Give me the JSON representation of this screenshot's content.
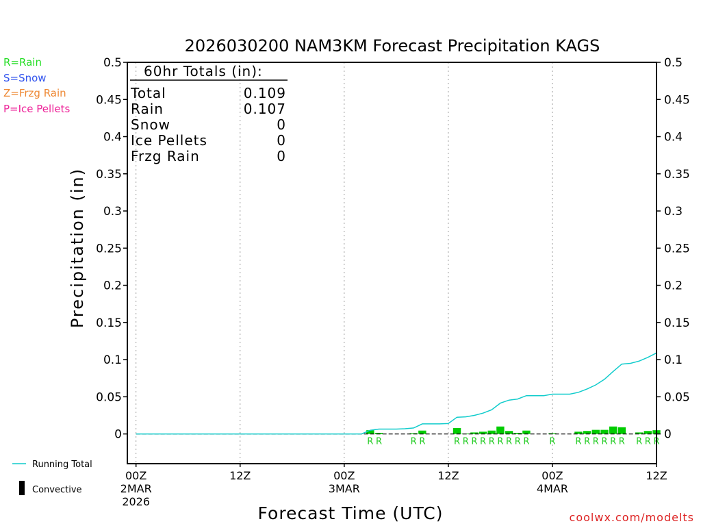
{
  "chart_data": {
    "type": "bar",
    "title": "2026030200 NAM3KM Forecast Precipitation KAGS",
    "xlabel": "Forecast Time (UTC)",
    "ylabel": "Precipitation (in)",
    "ylim": [
      -0.04,
      0.5
    ],
    "xlim": [
      -1,
      60
    ],
    "grid": "vertical dotted at 12-hour intervals",
    "yticks": [
      "0.5",
      "0.45",
      "0.4",
      "0.35",
      "0.3",
      "0.25",
      "0.2",
      "0.15",
      "0.1",
      "0.05",
      "0"
    ],
    "ytick_values": [
      0.5,
      0.45,
      0.4,
      0.35,
      0.3,
      0.25,
      0.2,
      0.15,
      0.1,
      0.05,
      0
    ],
    "xticks": [
      {
        "hour": 0,
        "label": "00Z",
        "date": "2MAR",
        "year": "2026"
      },
      {
        "hour": 12,
        "label": "12Z",
        "date": "",
        "year": ""
      },
      {
        "hour": 24,
        "label": "00Z",
        "date": "3MAR",
        "year": ""
      },
      {
        "hour": 36,
        "label": "12Z",
        "date": "",
        "year": ""
      },
      {
        "hour": 48,
        "label": "00Z",
        "date": "4MAR",
        "year": ""
      },
      {
        "hour": 60,
        "label": "12Z",
        "date": "",
        "year": ""
      }
    ],
    "bars": [
      {
        "hour": 27,
        "value": 0.005,
        "type": "R"
      },
      {
        "hour": 28,
        "value": 0.0015,
        "type": "R"
      },
      {
        "hour": 32,
        "value": 0.001,
        "type": "R"
      },
      {
        "hour": 33,
        "value": 0.0045,
        "type": "R"
      },
      {
        "hour": 37,
        "value": 0.008,
        "type": "R"
      },
      {
        "hour": 38,
        "value": 0.0005,
        "type": "R"
      },
      {
        "hour": 39,
        "value": 0.002,
        "type": "R"
      },
      {
        "hour": 40,
        "value": 0.003,
        "type": "R"
      },
      {
        "hour": 41,
        "value": 0.0045,
        "type": "R"
      },
      {
        "hour": 42,
        "value": 0.01,
        "type": "R"
      },
      {
        "hour": 43,
        "value": 0.004,
        "type": "R"
      },
      {
        "hour": 44,
        "value": 0.0015,
        "type": "R"
      },
      {
        "hour": 45,
        "value": 0.0045,
        "type": "R"
      },
      {
        "hour": 48,
        "value": 0.001,
        "type": "R"
      },
      {
        "hour": 51,
        "value": 0.003,
        "type": "R"
      },
      {
        "hour": 52,
        "value": 0.004,
        "type": "R"
      },
      {
        "hour": 53,
        "value": 0.0055,
        "type": "R"
      },
      {
        "hour": 54,
        "value": 0.0055,
        "type": "R"
      },
      {
        "hour": 55,
        "value": 0.01,
        "type": "R"
      },
      {
        "hour": 56,
        "value": 0.009,
        "type": "R"
      },
      {
        "hour": 58,
        "value": 0.002,
        "type": "R"
      },
      {
        "hour": 59,
        "value": 0.004,
        "type": "R"
      },
      {
        "hour": 60,
        "value": 0.005,
        "type": "R"
      }
    ],
    "running_total": {
      "name": "Running Total",
      "hours": [
        0,
        26,
        27,
        28,
        30,
        31,
        32,
        33,
        35,
        36,
        37,
        38,
        39,
        40,
        41,
        42,
        43,
        44,
        45,
        47,
        48,
        50,
        51,
        52,
        53,
        54,
        55,
        56,
        57,
        58,
        59,
        60
      ],
      "values": [
        0,
        0,
        0.005,
        0.0065,
        0.0065,
        0.007,
        0.008,
        0.0135,
        0.0135,
        0.014,
        0.0225,
        0.023,
        0.025,
        0.028,
        0.0325,
        0.0415,
        0.0455,
        0.047,
        0.0515,
        0.0515,
        0.0535,
        0.0535,
        0.056,
        0.0605,
        0.066,
        0.0735,
        0.084,
        0.094,
        0.095,
        0.098,
        0.103,
        0.109
      ]
    },
    "totals": {
      "header": "60hr Totals (in):",
      "rows": [
        {
          "label": "Total",
          "value": "0.109"
        },
        {
          "label": "Rain",
          "value": "0.107"
        },
        {
          "label": "Snow",
          "value": "0"
        },
        {
          "label": "Ice Pellets",
          "value": "0"
        },
        {
          "label": "Frzg Rain",
          "value": "0"
        }
      ]
    },
    "type_legend": [
      {
        "label": "R=Rain",
        "color": "#22dd22"
      },
      {
        "label": "S=Snow",
        "color": "#3355ee"
      },
      {
        "label": "Z=Frzg Rain",
        "color": "#ee8833"
      },
      {
        "label": "P=Ice Pellets",
        "color": "#ee2299"
      }
    ],
    "line_legend": {
      "running_total": "Running Total",
      "convective": "Convective"
    },
    "watermark": "coolwx.com/modelts",
    "colors": {
      "rain_bar": "#00cc00",
      "running_total": "#11cccc",
      "rain_label": "#22cc22",
      "watermark": "#dd2222"
    }
  }
}
